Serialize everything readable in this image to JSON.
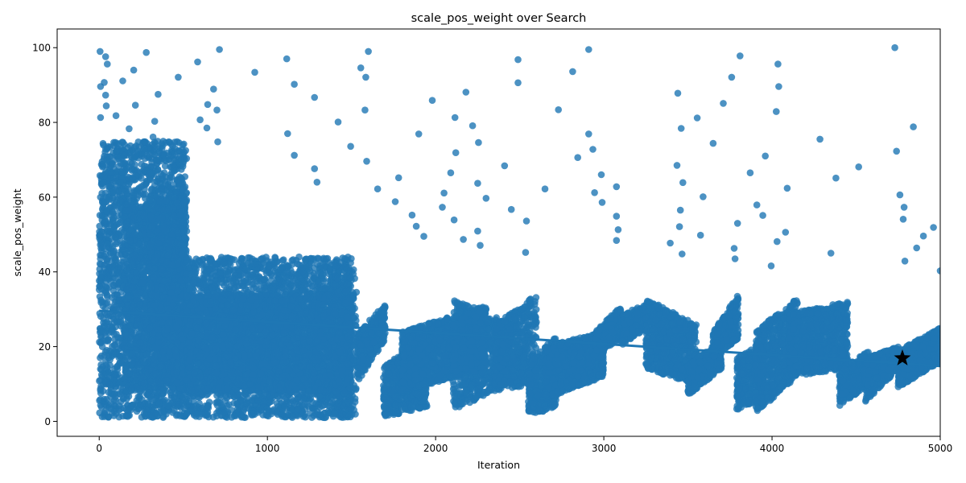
{
  "chart_data": {
    "type": "scatter",
    "title": "scale_pos_weight over Search",
    "xlabel": "Iteration",
    "ylabel": "scale_pos_weight",
    "xlim": [
      -250,
      5000
    ],
    "ylim": [
      -4,
      105
    ],
    "x_ticks": [
      0,
      1000,
      2000,
      3000,
      4000,
      5000
    ],
    "y_ticks": [
      0,
      20,
      40,
      60,
      80,
      100
    ],
    "grid": false,
    "legend": "none",
    "colors": {
      "points": "#1f77b4",
      "trend": "#1f77b4",
      "best": "#000000"
    },
    "trend_line": {
      "x": [
        0,
        5000
      ],
      "y": [
        29.6,
        14.8
      ]
    },
    "best_point": {
      "x": 4775,
      "y": 16.9,
      "marker": "star"
    },
    "outlier_points": [
      [
        5,
        99
      ],
      [
        38,
        97.6
      ],
      [
        48,
        95.6
      ],
      [
        30,
        90.7
      ],
      [
        8,
        89.6
      ],
      [
        38,
        87.3
      ],
      [
        42,
        84.4
      ],
      [
        8,
        81.3
      ],
      [
        140,
        91.1
      ],
      [
        205,
        94
      ],
      [
        215,
        84.6
      ],
      [
        178,
        78.3
      ],
      [
        100,
        81.8
      ],
      [
        280,
        98.7
      ],
      [
        330,
        80.3
      ],
      [
        350,
        87.5
      ],
      [
        320,
        76.1
      ],
      [
        470,
        92.1
      ],
      [
        585,
        96.2
      ],
      [
        600,
        80.7
      ],
      [
        645,
        84.8
      ],
      [
        640,
        78.5
      ],
      [
        680,
        88.9
      ],
      [
        700,
        83.3
      ],
      [
        705,
        74.8
      ],
      [
        715,
        99.5
      ],
      [
        925,
        93.4
      ],
      [
        1115,
        97
      ],
      [
        1160,
        90.2
      ],
      [
        1120,
        77
      ],
      [
        1160,
        71.2
      ],
      [
        1280,
        86.7
      ],
      [
        1280,
        67.6
      ],
      [
        1295,
        64
      ],
      [
        1420,
        80.1
      ],
      [
        1495,
        73.6
      ],
      [
        1555,
        94.6
      ],
      [
        1580,
        83.3
      ],
      [
        1585,
        92.1
      ],
      [
        1600,
        99
      ],
      [
        1590,
        69.6
      ],
      [
        1655,
        62.2
      ],
      [
        1780,
        65.2
      ],
      [
        1760,
        58.8
      ],
      [
        1860,
        55.2
      ],
      [
        1885,
        52.2
      ],
      [
        1930,
        49.5
      ],
      [
        1900,
        76.9
      ],
      [
        1980,
        85.9
      ],
      [
        2050,
        61.1
      ],
      [
        2040,
        57.3
      ],
      [
        2090,
        66.5
      ],
      [
        2115,
        81.3
      ],
      [
        2120,
        71.9
      ],
      [
        2110,
        53.9
      ],
      [
        2165,
        48.7
      ],
      [
        2180,
        88.1
      ],
      [
        2220,
        79.1
      ],
      [
        2255,
        74.6
      ],
      [
        2250,
        63.7
      ],
      [
        2250,
        50.9
      ],
      [
        2265,
        47.1
      ],
      [
        2300,
        59.7
      ],
      [
        2410,
        68.4
      ],
      [
        2450,
        56.7
      ],
      [
        2490,
        96.8
      ],
      [
        2490,
        90.6
      ],
      [
        2540,
        53.6
      ],
      [
        2535,
        45.2
      ],
      [
        2650,
        62.2
      ],
      [
        2730,
        83.4
      ],
      [
        2815,
        93.6
      ],
      [
        2845,
        70.6
      ],
      [
        2910,
        99.5
      ],
      [
        2910,
        76.9
      ],
      [
        2935,
        72.8
      ],
      [
        2945,
        61.2
      ],
      [
        2985,
        66
      ],
      [
        2990,
        58.6
      ],
      [
        3075,
        62.8
      ],
      [
        3075,
        54.9
      ],
      [
        3085,
        51.3
      ],
      [
        3075,
        48.4
      ],
      [
        3395,
        47.7
      ],
      [
        3440,
        87.8
      ],
      [
        3435,
        68.5
      ],
      [
        3450,
        52.1
      ],
      [
        3455,
        56.5
      ],
      [
        3460,
        78.4
      ],
      [
        3470,
        63.9
      ],
      [
        3465,
        44.8
      ],
      [
        3555,
        81.2
      ],
      [
        3575,
        49.8
      ],
      [
        3590,
        60.1
      ],
      [
        3650,
        74.4
      ],
      [
        3710,
        85.1
      ],
      [
        3760,
        92.1
      ],
      [
        3775,
        46.3
      ],
      [
        3780,
        43.5
      ],
      [
        3810,
        97.8
      ],
      [
        3795,
        53
      ],
      [
        3870,
        66.5
      ],
      [
        3910,
        57.9
      ],
      [
        3945,
        55.1
      ],
      [
        3960,
        71
      ],
      [
        3995,
        41.6
      ],
      [
        4025,
        82.9
      ],
      [
        4030,
        48.1
      ],
      [
        4035,
        95.6
      ],
      [
        4040,
        89.6
      ],
      [
        4080,
        50.6
      ],
      [
        4090,
        62.4
      ],
      [
        4285,
        75.5
      ],
      [
        4350,
        45
      ],
      [
        4380,
        65.1
      ],
      [
        4515,
        68.1
      ],
      [
        4730,
        100
      ],
      [
        4740,
        72.3
      ],
      [
        4760,
        60.6
      ],
      [
        4785,
        57.3
      ],
      [
        4780,
        54.1
      ],
      [
        4790,
        42.9
      ],
      [
        4840,
        78.8
      ],
      [
        4860,
        46.4
      ],
      [
        4900,
        49.6
      ],
      [
        4960,
        51.9
      ],
      [
        5000,
        40.3
      ]
    ],
    "bands": [
      {
        "x": [
          0,
          520
        ],
        "y": [
          1,
          75
        ],
        "density": 4.2
      },
      {
        "x": [
          150,
          520
        ],
        "y": [
          8,
          58
        ],
        "density": 3.0
      },
      {
        "x": [
          300,
          520
        ],
        "y": [
          10,
          60
        ],
        "density": 3.5
      },
      {
        "x": [
          520,
          1500
        ],
        "y": [
          1,
          44
        ],
        "density": 2.8
      },
      {
        "x": [
          520,
          1500
        ],
        "y": [
          8,
          34
        ],
        "density": 3.0
      },
      {
        "x": [
          1400,
          1530
        ],
        "y": [
          1,
          42
        ],
        "density": 1.6
      }
    ],
    "ramps": [
      {
        "x": [
          1530,
          1700
        ],
        "y": [
          [
            10,
            23
          ],
          [
            22,
            32
          ]
        ],
        "density": 2.0
      },
      {
        "x": [
          1690,
          1950
        ],
        "y": [
          [
            1,
            15
          ],
          [
            4,
            22
          ]
        ],
        "density": 2.0
      },
      {
        "x": [
          1800,
          2300
        ],
        "y": [
          [
            8,
            24
          ],
          [
            14,
            31
          ]
        ],
        "density": 3.0
      },
      {
        "x": [
          2100,
          2450
        ],
        "y": [
          [
            3,
            33
          ],
          [
            10,
            26
          ]
        ],
        "density": 2.2
      },
      {
        "x": [
          2350,
          2600
        ],
        "y": [
          [
            8,
            26
          ],
          [
            10,
            34
          ]
        ],
        "density": 2.2
      },
      {
        "x": [
          2550,
          2720
        ],
        "y": [
          [
            1,
            16
          ],
          [
            4,
            23
          ]
        ],
        "density": 2.0
      },
      {
        "x": [
          2650,
          3000
        ],
        "y": [
          [
            6,
            20
          ],
          [
            12,
            24
          ]
        ],
        "density": 2.8
      },
      {
        "x": [
          2950,
          3100
        ],
        "y": [
          [
            18,
            24
          ],
          [
            22,
            31
          ]
        ],
        "density": 2.0
      },
      {
        "x": [
          3100,
          3250
        ],
        "y": [
          [
            20,
            28
          ],
          [
            25,
            32
          ]
        ],
        "density": 1.8
      },
      {
        "x": [
          3250,
          3550
        ],
        "y": [
          [
            14,
            33
          ],
          [
            10,
            26
          ]
        ],
        "density": 2.6
      },
      {
        "x": [
          3500,
          3700
        ],
        "y": [
          [
            7,
            15
          ],
          [
            14,
            22
          ]
        ],
        "density": 2.0
      },
      {
        "x": [
          3650,
          3800
        ],
        "y": [
          [
            17,
            24
          ],
          [
            22,
            34
          ]
        ],
        "density": 2.0
      },
      {
        "x": [
          3790,
          3950
        ],
        "y": [
          [
            3,
            17
          ],
          [
            6,
            21
          ]
        ],
        "density": 2.0
      },
      {
        "x": [
          3900,
          4150
        ],
        "y": [
          [
            2,
            24
          ],
          [
            12,
            33
          ]
        ],
        "density": 2.8
      },
      {
        "x": [
          4100,
          4450
        ],
        "y": [
          [
            12,
            29
          ],
          [
            14,
            32
          ]
        ],
        "density": 2.8
      },
      {
        "x": [
          4400,
          4580
        ],
        "y": [
          [
            4,
            14
          ],
          [
            10,
            19
          ]
        ],
        "density": 2.0
      },
      {
        "x": [
          4550,
          4750
        ],
        "y": [
          [
            5,
            17
          ],
          [
            14,
            20
          ]
        ],
        "density": 2.0
      },
      {
        "x": [
          4750,
          5000
        ],
        "y": [
          [
            9,
            19
          ],
          [
            16,
            25
          ]
        ],
        "density": 2.4
      }
    ]
  }
}
